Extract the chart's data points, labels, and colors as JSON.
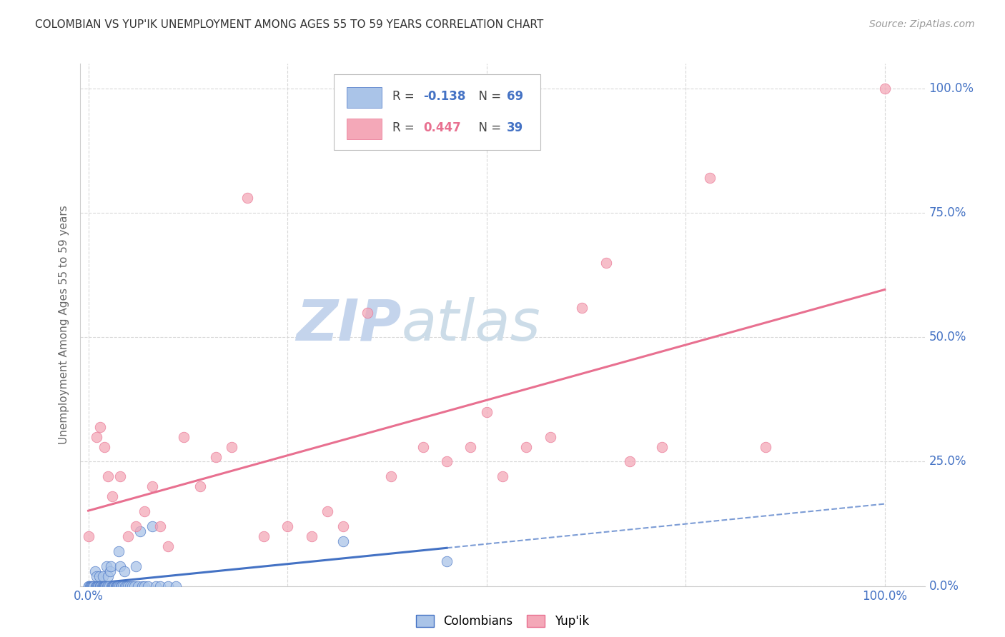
{
  "title": "COLOMBIAN VS YUP'IK UNEMPLOYMENT AMONG AGES 55 TO 59 YEARS CORRELATION CHART",
  "source": "Source: ZipAtlas.com",
  "ylabel": "Unemployment Among Ages 55 to 59 years",
  "colombian_R": -0.138,
  "colombian_N": 69,
  "yupik_R": 0.447,
  "yupik_N": 39,
  "colombian_color": "#aac4e8",
  "yupik_color": "#f4a8b8",
  "colombian_line_color": "#4472c4",
  "yupik_line_color": "#e87090",
  "background_color": "#ffffff",
  "grid_color": "#d8d8d8",
  "watermark_zip_color": "#c8d8f0",
  "watermark_atlas_color": "#d0dce8",
  "colombian_x": [
    0.0,
    0.0,
    0.002,
    0.003,
    0.004,
    0.005,
    0.006,
    0.007,
    0.008,
    0.009,
    0.01,
    0.01,
    0.011,
    0.012,
    0.013,
    0.014,
    0.015,
    0.015,
    0.016,
    0.017,
    0.018,
    0.018,
    0.019,
    0.02,
    0.02,
    0.021,
    0.022,
    0.023,
    0.024,
    0.025,
    0.025,
    0.026,
    0.027,
    0.028,
    0.029,
    0.03,
    0.031,
    0.032,
    0.033,
    0.034,
    0.035,
    0.036,
    0.037,
    0.038,
    0.039,
    0.04,
    0.041,
    0.042,
    0.043,
    0.045,
    0.046,
    0.048,
    0.05,
    0.052,
    0.055,
    0.058,
    0.06,
    0.062,
    0.065,
    0.068,
    0.07,
    0.075,
    0.08,
    0.085,
    0.09,
    0.1,
    0.11,
    0.32,
    0.45
  ],
  "colombian_y": [
    0.0,
    0.0,
    0.0,
    0.0,
    0.0,
    0.0,
    0.0,
    0.0,
    0.03,
    0.0,
    0.0,
    0.02,
    0.0,
    0.0,
    0.0,
    0.02,
    0.0,
    0.0,
    0.0,
    0.0,
    0.02,
    0.0,
    0.0,
    0.0,
    0.0,
    0.0,
    0.0,
    0.04,
    0.0,
    0.02,
    0.0,
    0.0,
    0.03,
    0.04,
    0.0,
    0.0,
    0.0,
    0.0,
    0.0,
    0.0,
    0.0,
    0.0,
    0.0,
    0.07,
    0.0,
    0.04,
    0.0,
    0.0,
    0.0,
    0.03,
    0.0,
    0.0,
    0.0,
    0.0,
    0.0,
    0.0,
    0.04,
    0.0,
    0.11,
    0.0,
    0.0,
    0.0,
    0.12,
    0.0,
    0.0,
    0.0,
    0.0,
    0.09,
    0.05
  ],
  "yupik_x": [
    0.0,
    0.01,
    0.015,
    0.02,
    0.025,
    0.03,
    0.04,
    0.05,
    0.06,
    0.07,
    0.08,
    0.09,
    0.1,
    0.12,
    0.14,
    0.16,
    0.18,
    0.2,
    0.22,
    0.25,
    0.28,
    0.3,
    0.32,
    0.35,
    0.38,
    0.42,
    0.45,
    0.48,
    0.5,
    0.52,
    0.55,
    0.58,
    0.62,
    0.65,
    0.68,
    0.72,
    0.78,
    0.85,
    1.0
  ],
  "yupik_y": [
    0.1,
    0.3,
    0.32,
    0.28,
    0.22,
    0.18,
    0.22,
    0.1,
    0.12,
    0.15,
    0.2,
    0.12,
    0.08,
    0.3,
    0.2,
    0.26,
    0.28,
    0.78,
    0.1,
    0.12,
    0.1,
    0.15,
    0.12,
    0.55,
    0.22,
    0.28,
    0.25,
    0.28,
    0.35,
    0.22,
    0.28,
    0.3,
    0.56,
    0.65,
    0.25,
    0.28,
    0.82,
    0.28,
    1.0
  ],
  "ylim": [
    0.0,
    1.05
  ],
  "xlim": [
    -0.01,
    1.05
  ],
  "ytick_positions": [
    0.0,
    0.25,
    0.5,
    0.75,
    1.0
  ],
  "ytick_labels": [
    "0.0%",
    "25.0%",
    "50.0%",
    "75.0%",
    "100.0%"
  ],
  "xtick_positions": [
    0.0,
    0.25,
    0.5,
    0.75,
    1.0
  ],
  "xtick_labels_bottom": [
    "0.0%",
    "",
    "",
    "",
    "100.0%"
  ]
}
